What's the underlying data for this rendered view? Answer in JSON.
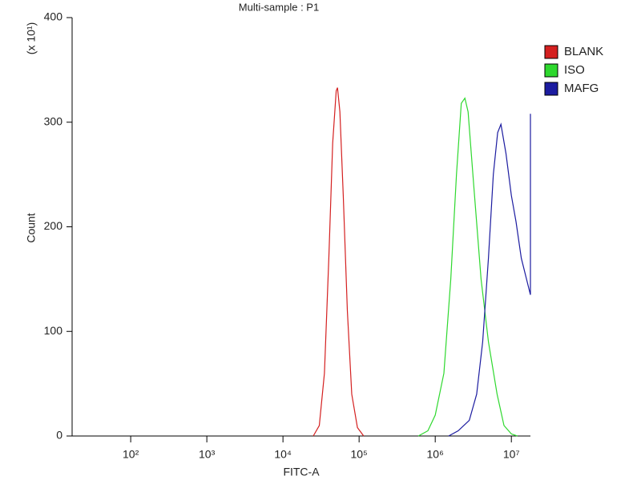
{
  "chart_data": {
    "type": "line",
    "title": "Multi-sample : P1",
    "x_label": "FITC-A",
    "y_label": "Count",
    "y_multiplier": "(x 10¹)",
    "xscale": "log",
    "xlim": [
      17,
      17800000
    ],
    "ylim": [
      0,
      400
    ],
    "xticks": [
      {
        "value": 100,
        "label": "10²"
      },
      {
        "value": 1000,
        "label": "10³"
      },
      {
        "value": 10000,
        "label": "10⁴"
      },
      {
        "value": 100000,
        "label": "10⁵"
      },
      {
        "value": 1000000,
        "label": "10⁶"
      },
      {
        "value": 10000000,
        "label": "10⁷"
      }
    ],
    "yticks": [
      0,
      100,
      200,
      300,
      400
    ],
    "legend": "right",
    "series": [
      {
        "name": "BLANK",
        "color": "#d42020",
        "x": [
          25000,
          30000,
          35000,
          40000,
          45000,
          50000,
          52000,
          56000,
          62000,
          70000,
          80000,
          95000,
          115000
        ],
        "values": [
          0,
          10,
          60,
          170,
          280,
          330,
          333,
          310,
          230,
          120,
          40,
          8,
          0
        ]
      },
      {
        "name": "ISO",
        "color": "#2ed82e",
        "x": [
          600000,
          800000,
          1000000,
          1300000,
          1600000,
          1900000,
          2200000,
          2450000,
          2700000,
          3200000,
          4000000,
          5000000,
          6500000,
          8000000,
          10000000,
          12000000
        ],
        "values": [
          0,
          5,
          20,
          60,
          150,
          250,
          318,
          323,
          310,
          240,
          150,
          90,
          40,
          10,
          2,
          0
        ]
      },
      {
        "name": "MAFG",
        "color": "#1c1ca0",
        "x": [
          1500000,
          2000000,
          2800000,
          3500000,
          4200000,
          5000000,
          5800000,
          6600000,
          7300000,
          8500000,
          10000000,
          11500000,
          13500000,
          17800000,
          17800000
        ],
        "values": [
          0,
          5,
          15,
          40,
          90,
          170,
          250,
          290,
          298,
          270,
          230,
          205,
          170,
          135,
          308
        ]
      }
    ]
  }
}
